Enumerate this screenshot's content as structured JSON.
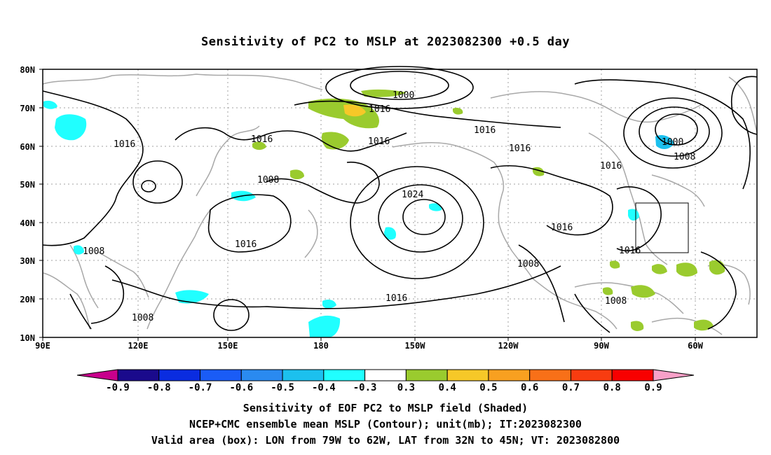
{
  "title": "Sensitivity of PC2 to MSLP at 2023082300 +0.5 day",
  "lat_labels": [
    "80N",
    "70N",
    "60N",
    "50N",
    "40N",
    "30N",
    "20N",
    "10N"
  ],
  "lon_labels": [
    "90E",
    "120E",
    "150E",
    "180",
    "150W",
    "120W",
    "90W",
    "60W"
  ],
  "contour_labels": [
    "1000",
    "1016",
    "1016",
    "1016",
    "1016",
    "1016",
    "1016",
    "1008",
    "1024",
    "1016",
    "1016",
    "1000",
    "1008",
    "1016",
    "1016",
    "1008",
    "1016",
    "1008",
    "1008",
    "1008"
  ],
  "colorbar": {
    "labels": [
      "-0.9",
      "-0.8",
      "-0.7",
      "-0.6",
      "-0.5",
      "-0.4",
      "-0.3",
      "0.3",
      "0.4",
      "0.5",
      "0.6",
      "0.7",
      "0.8",
      "0.9"
    ],
    "colors": [
      "#1a0a8c",
      "#0a2ce0",
      "#1a5cf6",
      "#2a8af0",
      "#1cc0ee",
      "#20ffff",
      "#ffffff",
      "#9acb2e",
      "#f6c828",
      "#f8a020",
      "#f87018",
      "#f83c10",
      "#f80000"
    ],
    "left_arrow_color": "#c8008c",
    "right_arrow_color": "#f8a0c8"
  },
  "captions": [
    "Sensitivity of EOF PC2 to MSLP field (Shaded)",
    "NCEP+CMC ensemble mean MSLP (Contour); unit(mb); IT:2023082300",
    "Valid area (box): LON from 79W to 62W, LAT from 32N to 45N; VT: 2023082800"
  ],
  "valid_box": {
    "lon_from": "79W",
    "lon_to": "62W",
    "lat_from": "32N",
    "lat_to": "45N"
  }
}
